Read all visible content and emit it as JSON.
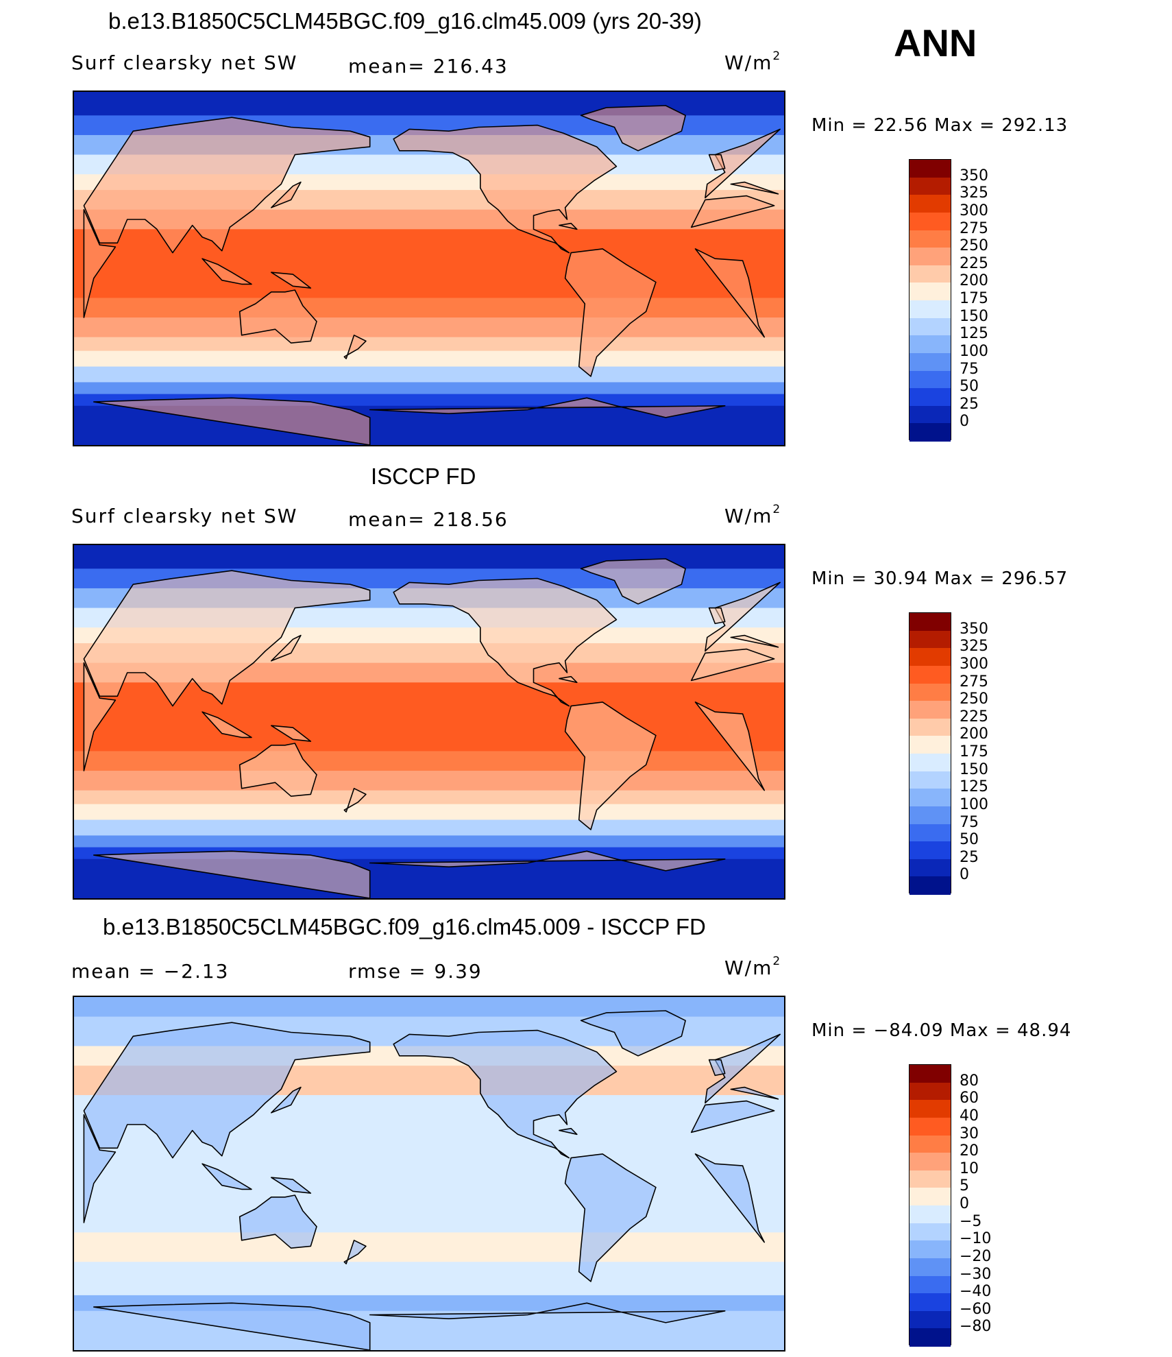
{
  "header": {
    "ann_label": "ANN"
  },
  "panels": [
    {
      "title": "b.e13.B1850C5CLM45BGC.f09_g16.clm45.009 (yrs 20-39)",
      "left_label": "Surf clearsky net SW",
      "center_label": "mean=  216.43",
      "unit_base": "W/m",
      "unit_exp": "2",
      "minmax": "Min =    22.56  Max  =  292.13",
      "levels": [
        "350",
        "325",
        "300",
        "275",
        "250",
        "225",
        "200",
        "175",
        "150",
        "125",
        "100",
        "75",
        "50",
        "25",
        "0"
      ],
      "colors": [
        "#800000",
        "#b41c00",
        "#e23b00",
        "#ff5b21",
        "#ff7d45",
        "#ffa27a",
        "#ffcbaa",
        "#fff0dc",
        "#d9ecff",
        "#b3d3ff",
        "#88b5fb",
        "#5f92f5",
        "#3a6cf0",
        "#1a43e0",
        "#0a27b8",
        "#00128c"
      ],
      "field_type": "model"
    },
    {
      "title": "ISCCP FD",
      "left_label": "Surf clearsky net SW",
      "center_label": "mean=  218.56",
      "unit_base": "W/m",
      "unit_exp": "2",
      "minmax": "Min =    30.94  Max  =  296.57",
      "levels": [
        "350",
        "325",
        "300",
        "275",
        "250",
        "225",
        "200",
        "175",
        "150",
        "125",
        "100",
        "75",
        "50",
        "25",
        "0"
      ],
      "colors": [
        "#800000",
        "#b41c00",
        "#e23b00",
        "#ff5b21",
        "#ff7d45",
        "#ffa27a",
        "#ffcbaa",
        "#fff0dc",
        "#d9ecff",
        "#b3d3ff",
        "#88b5fb",
        "#5f92f5",
        "#3a6cf0",
        "#1a43e0",
        "#0a27b8",
        "#00128c"
      ],
      "field_type": "obs"
    },
    {
      "title": "b.e13.B1850C5CLM45BGC.f09_g16.clm45.009 - ISCCP FD",
      "left_label": "mean =    −2.13",
      "center_label": "rmse =     9.39",
      "unit_base": "W/m",
      "unit_exp": "2",
      "minmax": "Min = −84.09  Max =    48.94",
      "levels": [
        "80",
        "60",
        "40",
        "30",
        "20",
        "10",
        "5",
        "0",
        "−5",
        "−10",
        "−20",
        "−30",
        "−40",
        "−60",
        "−80"
      ],
      "colors": [
        "#800000",
        "#b41c00",
        "#e23b00",
        "#ff5b21",
        "#ff7d45",
        "#ffa27a",
        "#ffcbaa",
        "#fff0dc",
        "#d9ecff",
        "#b3d3ff",
        "#88b5fb",
        "#5f92f5",
        "#3a6cf0",
        "#1a43e0",
        "#0a27b8",
        "#00128c"
      ],
      "field_type": "diff"
    }
  ]
}
